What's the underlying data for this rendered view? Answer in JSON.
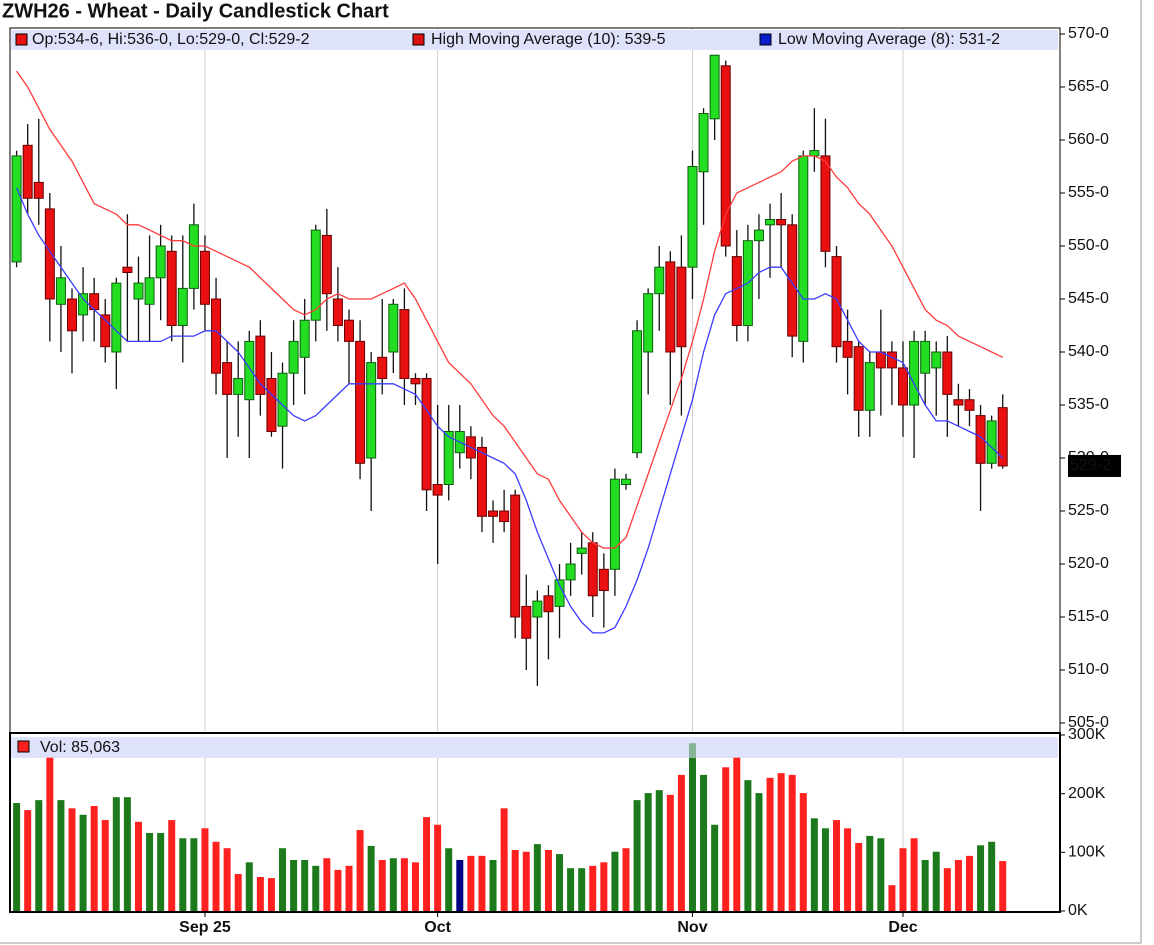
{
  "chart_data": {
    "type": "candlestick",
    "title": "ZWH26 - Wheat - Daily Candlestick Chart",
    "ohlc_label": "Op:534-6, Hi:536-0, Lo:529-0, Cl:529-2",
    "last_price_label": "529-2",
    "categories": [
      null,
      null,
      null,
      null,
      null,
      null,
      null,
      null,
      null,
      null,
      null,
      null,
      null,
      null,
      null,
      null,
      null,
      "Sep 25",
      null,
      null,
      null,
      null,
      null,
      null,
      null,
      null,
      null,
      null,
      null,
      null,
      null,
      null,
      null,
      null,
      null,
      null,
      null,
      null,
      "Oct",
      null,
      null,
      null,
      null,
      null,
      null,
      null,
      null,
      null,
      null,
      null,
      null,
      null,
      null,
      null,
      null,
      null,
      null,
      null,
      null,
      null,
      null,
      "Nov",
      null,
      null,
      null,
      null,
      null,
      null,
      null,
      null,
      null,
      null,
      null,
      null,
      null,
      null,
      null,
      null,
      null,
      null,
      "Dec",
      null,
      null,
      null,
      null,
      null,
      null,
      null,
      null,
      null
    ],
    "open": [
      548.5,
      559.5,
      556,
      553.5,
      544.5,
      545,
      543.5,
      545.5,
      543.5,
      540,
      548,
      545,
      544.5,
      547,
      549.5,
      542.5,
      546,
      549.5,
      545,
      539,
      536,
      535.5,
      541.5,
      537.5,
      533,
      538,
      539.5,
      543,
      551,
      545,
      543,
      541,
      530,
      539.5,
      540,
      544,
      537.5,
      537.5,
      527.5,
      527.5,
      530.5,
      532,
      531,
      525,
      525,
      526.5,
      516,
      515,
      517,
      516,
      518.5,
      521,
      522,
      519.5,
      519.5,
      527.5,
      530.5,
      540,
      545.5,
      548.5,
      548,
      548,
      557,
      562,
      567,
      549,
      542.5,
      550.5,
      552,
      552.5,
      552,
      541,
      558.5,
      558.5,
      549,
      541,
      540.5,
      534.5,
      540,
      540,
      538.5,
      535,
      538,
      538.5,
      540,
      535.5,
      535.5,
      534,
      529.5,
      534.75
    ],
    "high": [
      559,
      561.5,
      562,
      555,
      550,
      546,
      548,
      547,
      545,
      547,
      553,
      549,
      551,
      552,
      551,
      551,
      554,
      551,
      547,
      541,
      541,
      542,
      543,
      540,
      539,
      543,
      545,
      552,
      553.5,
      548,
      544,
      543,
      540,
      545,
      545,
      546,
      538,
      538,
      535,
      535,
      535,
      533,
      532,
      526,
      527,
      527,
      519,
      517.5,
      518,
      520,
      522,
      523,
      523,
      521,
      529,
      528.5,
      543,
      546,
      550,
      549.5,
      551,
      559,
      563,
      568,
      567.5,
      551.5,
      552,
      553,
      554,
      555,
      553,
      559,
      563,
      562,
      550,
      544,
      541,
      540,
      544,
      541,
      541,
      542,
      542,
      541,
      541.5,
      537,
      536.5,
      535,
      534,
      536
    ],
    "low": [
      548,
      553,
      552,
      541,
      540,
      538,
      541,
      541,
      539,
      536.5,
      541,
      541,
      541,
      543,
      541,
      539,
      544,
      542,
      536,
      530,
      532,
      530,
      534,
      532,
      529,
      535,
      536,
      541,
      542,
      541,
      537,
      528,
      525,
      536,
      538,
      535,
      535,
      525,
      520,
      526,
      529,
      528,
      523,
      522,
      523,
      513,
      510,
      508.5,
      511,
      513,
      517,
      519,
      515,
      514,
      517,
      527,
      530,
      536,
      542,
      535,
      534,
      545,
      552,
      560,
      549,
      541,
      541,
      545,
      547,
      548,
      539.5,
      539,
      557,
      548,
      539,
      536,
      532,
      532,
      534,
      535,
      532,
      530,
      535,
      534,
      532,
      533,
      533,
      525,
      529,
      529
    ],
    "close": [
      558.5,
      554.5,
      554.5,
      545,
      547,
      542,
      545.5,
      544,
      540.5,
      546.5,
      547.5,
      546.5,
      547,
      550,
      542.5,
      546,
      552,
      544.5,
      538,
      536,
      537.5,
      541,
      536,
      532.5,
      538,
      541,
      543,
      551.5,
      545.5,
      542.5,
      541,
      529.5,
      539,
      537.5,
      544.5,
      537.5,
      537,
      527,
      526.5,
      532.5,
      532.5,
      530,
      524.5,
      524.5,
      524,
      515,
      513,
      516.5,
      515.5,
      518.5,
      520,
      521.5,
      517,
      517.5,
      528,
      528,
      542,
      545.5,
      548,
      540,
      540.5,
      557.5,
      562.5,
      568,
      550,
      542.5,
      550.5,
      551.5,
      552.5,
      552,
      541.5,
      558.5,
      559,
      549.5,
      540.5,
      539.5,
      534.5,
      539,
      538.5,
      538.5,
      535,
      541,
      541,
      540,
      536,
      535,
      534.5,
      529.5,
      533.5,
      529.25
    ],
    "up_color": "#22dd22",
    "down_color": "#e81010",
    "series": [
      {
        "name": "High Moving Average (10): 539-5",
        "color": "#ff3b3b",
        "legend_color": "#dd1111",
        "values": [
          566.5,
          565,
          563,
          561,
          559.5,
          558,
          556,
          554,
          553.5,
          553,
          552,
          552,
          551.5,
          551,
          550.5,
          550.5,
          550,
          550,
          549.5,
          549,
          548.5,
          548,
          547,
          546,
          545,
          544,
          543.5,
          544,
          545,
          545.5,
          545,
          545,
          545,
          545.5,
          546,
          546.5,
          545,
          543,
          541,
          539,
          538,
          537,
          535.5,
          534,
          533,
          531.5,
          530,
          528.5,
          528,
          526,
          524.5,
          523,
          522,
          521.5,
          521.5,
          522.5,
          525.5,
          528.5,
          531.5,
          534.5,
          537.5,
          541,
          545,
          549.5,
          553,
          555,
          555.5,
          556,
          556.5,
          557,
          558,
          558.5,
          558.5,
          558,
          556.5,
          555.5,
          554,
          553,
          551.5,
          550,
          548,
          546,
          544,
          543,
          542.5,
          541.5,
          541,
          540.5,
          540,
          539.5
        ]
      },
      {
        "name": "Low Moving Average (8): 531-2",
        "color": "#3b3bff",
        "legend_color": "#0a1ccc",
        "values": [
          555.5,
          553,
          551,
          549.5,
          548,
          546.5,
          545,
          544,
          543,
          542,
          541,
          541,
          541,
          541,
          541.5,
          541.5,
          541.5,
          542,
          542,
          541,
          540,
          538.5,
          537,
          536,
          535,
          534,
          533.5,
          534,
          535,
          536,
          537,
          537,
          537,
          537,
          537,
          536.5,
          536,
          534.5,
          533,
          532,
          531.5,
          531,
          530.5,
          530,
          529.5,
          528.5,
          526,
          523,
          520.5,
          518,
          516,
          514.5,
          513.5,
          513.5,
          514,
          516,
          518.5,
          521.5,
          525,
          528.5,
          532,
          535.5,
          540,
          543.5,
          545.5,
          546,
          546.5,
          547.5,
          548,
          548,
          546.5,
          545,
          545,
          545.5,
          545,
          543,
          541,
          540,
          540,
          539.5,
          539,
          537,
          535,
          533.5,
          533.5,
          533,
          532.5,
          532,
          531,
          530
        ]
      }
    ],
    "ylim": [
      505,
      570
    ],
    "yticks": [
      {
        "value": 505,
        "label": "505-0"
      },
      {
        "value": 510,
        "label": "510-0"
      },
      {
        "value": 515,
        "label": "515-0"
      },
      {
        "value": 520,
        "label": "520-0"
      },
      {
        "value": 525,
        "label": "525-0"
      },
      {
        "value": 530,
        "label": "530-0"
      },
      {
        "value": 535,
        "label": "535-0"
      },
      {
        "value": 540,
        "label": "540-0"
      },
      {
        "value": 545,
        "label": "545-0"
      },
      {
        "value": 550,
        "label": "550-0"
      },
      {
        "value": 555,
        "label": "555-0"
      },
      {
        "value": 560,
        "label": "560-0"
      },
      {
        "value": 565,
        "label": "565-0"
      },
      {
        "value": 570,
        "label": "570-0"
      }
    ],
    "grid": true,
    "volume": {
      "type": "bar",
      "name": "Vol: 85,063",
      "values": [
        184000,
        172000,
        189000,
        262000,
        189000,
        175000,
        164000,
        179000,
        155000,
        194000,
        194000,
        152000,
        133000,
        133000,
        155000,
        124000,
        124000,
        141000,
        118000,
        107000,
        63000,
        83000,
        58000,
        56000,
        107000,
        87000,
        87000,
        77000,
        90000,
        70000,
        77000,
        138000,
        111000,
        87000,
        90000,
        90000,
        83000,
        160000,
        147000,
        107000,
        87000,
        94000,
        94000,
        87000,
        175000,
        104000,
        101000,
        114000,
        104000,
        97000,
        73000,
        73000,
        77000,
        83000,
        101000,
        107000,
        189000,
        201000,
        206000,
        198000,
        232000,
        286000,
        232000,
        147000,
        245000,
        262000,
        223000,
        201000,
        227000,
        235000,
        232000,
        201000,
        158000,
        141000,
        155000,
        141000,
        116000,
        128000,
        124000,
        44000,
        107000,
        124000,
        87000,
        101000,
        73000,
        87000,
        94000,
        112000,
        118000,
        85063
      ],
      "colors": [
        "#1c7a1c",
        "#ff2020",
        "#1c7a1c",
        "#ff2020",
        "#1c7a1c",
        "#ff2020",
        "#1c7a1c",
        "#ff2020",
        "#ff2020",
        "#1c7a1c",
        "#1c7a1c",
        "#ff2020",
        "#1c7a1c",
        "#1c7a1c",
        "#ff2020",
        "#1c7a1c",
        "#1c7a1c",
        "#ff2020",
        "#ff2020",
        "#ff2020",
        "#ff2020",
        "#1c7a1c",
        "#ff2020",
        "#ff2020",
        "#1c7a1c",
        "#1c7a1c",
        "#1c7a1c",
        "#1c7a1c",
        "#ff2020",
        "#ff2020",
        "#ff2020",
        "#ff2020",
        "#1c7a1c",
        "#ff2020",
        "#1c7a1c",
        "#ff2020",
        "#ff2020",
        "#ff2020",
        "#ff2020",
        "#1c7a1c",
        "#000080",
        "#ff2020",
        "#ff2020",
        "#1c7a1c",
        "#ff2020",
        "#ff2020",
        "#ff2020",
        "#1c7a1c",
        "#ff2020",
        "#1c7a1c",
        "#1c7a1c",
        "#1c7a1c",
        "#ff2020",
        "#ff2020",
        "#1c7a1c",
        "#ff2020",
        "#1c7a1c",
        "#1c7a1c",
        "#1c7a1c",
        "#ff2020",
        "#ff2020",
        "#1c7a1c",
        "#1c7a1c",
        "#1c7a1c",
        "#ff2020",
        "#ff2020",
        "#1c7a1c",
        "#1c7a1c",
        "#ff2020",
        "#ff2020",
        "#ff2020",
        "#ff2020",
        "#1c7a1c",
        "#1c7a1c",
        "#ff2020",
        "#ff2020",
        "#ff2020",
        "#1c7a1c",
        "#1c7a1c",
        "#ff2020",
        "#ff2020",
        "#ff2020",
        "#1c7a1c",
        "#1c7a1c",
        "#ff2020",
        "#ff2020",
        "#ff2020",
        "#1c7a1c",
        "#1c7a1c",
        "#ff2020"
      ],
      "ylim": [
        0,
        300000
      ],
      "yticks": [
        {
          "value": 0,
          "label": "0K"
        },
        {
          "value": 100000,
          "label": "100K"
        },
        {
          "value": 200000,
          "label": "200K"
        },
        {
          "value": 300000,
          "label": "300K"
        }
      ]
    }
  }
}
